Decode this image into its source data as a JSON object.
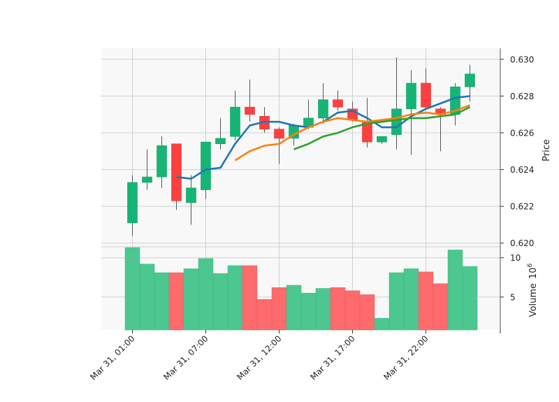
{
  "chart_data": {
    "type": "candlestick",
    "price_axis": {
      "label": "Price",
      "ylim": [
        0.6198,
        0.6306
      ],
      "ticks": [
        "0.620",
        "0.622",
        "0.624",
        "0.626",
        "0.628",
        "0.630"
      ],
      "tick_values": [
        0.62,
        0.622,
        0.624,
        0.626,
        0.628,
        0.63
      ]
    },
    "volume_axis": {
      "label": "Volume",
      "exponent_label": "10",
      "exponent": "6",
      "ylim": [
        0.8,
        11.4
      ],
      "ticks": [
        "5",
        "10"
      ],
      "tick_values": [
        5,
        10
      ]
    },
    "x_axis": {
      "tick_labels": [
        "Mar 31, 01:00",
        "Mar 31, 07:00",
        "Mar 31, 12:00",
        "Mar 31, 17:00",
        "Mar 31, 22:00"
      ],
      "tick_index": [
        0,
        5,
        10,
        15,
        20
      ]
    },
    "grid": true,
    "colors": {
      "up": "#16b575",
      "down": "#fc4040",
      "up_volume": "#4dc790",
      "down_volume": "#fd6b6c",
      "wick": "#555555",
      "background": "#f8f8f8",
      "grid": "#d0d0d0"
    },
    "candles": [
      {
        "o": 0.6211,
        "h": 0.6237,
        "l": 0.6204,
        "c": 0.6233,
        "v": 11.3
      },
      {
        "o": 0.6233,
        "h": 0.6251,
        "l": 0.6229,
        "c": 0.6236,
        "v": 9.2
      },
      {
        "o": 0.6236,
        "h": 0.6258,
        "l": 0.623,
        "c": 0.6253,
        "v": 8.1
      },
      {
        "o": 0.6254,
        "h": 0.6254,
        "l": 0.6218,
        "c": 0.6223,
        "v": 8.1
      },
      {
        "o": 0.6222,
        "h": 0.6237,
        "l": 0.621,
        "c": 0.623,
        "v": 8.6
      },
      {
        "o": 0.6229,
        "h": 0.6255,
        "l": 0.6224,
        "c": 0.6255,
        "v": 9.9
      },
      {
        "o": 0.6254,
        "h": 0.6268,
        "l": 0.6251,
        "c": 0.6257,
        "v": 8.0
      },
      {
        "o": 0.6258,
        "h": 0.6283,
        "l": 0.6256,
        "c": 0.6274,
        "v": 9.0
      },
      {
        "o": 0.6274,
        "h": 0.6289,
        "l": 0.6266,
        "c": 0.627,
        "v": 9.0
      },
      {
        "o": 0.6269,
        "h": 0.6274,
        "l": 0.626,
        "c": 0.6262,
        "v": 4.7
      },
      {
        "o": 0.6262,
        "h": 0.6263,
        "l": 0.6243,
        "c": 0.6257,
        "v": 6.2
      },
      {
        "o": 0.6257,
        "h": 0.6265,
        "l": 0.6253,
        "c": 0.6264,
        "v": 6.5
      },
      {
        "o": 0.6263,
        "h": 0.6278,
        "l": 0.6262,
        "c": 0.6268,
        "v": 5.5
      },
      {
        "o": 0.6268,
        "h": 0.6287,
        "l": 0.6265,
        "c": 0.6278,
        "v": 6.1
      },
      {
        "o": 0.6278,
        "h": 0.6283,
        "l": 0.6272,
        "c": 0.6274,
        "v": 6.2
      },
      {
        "o": 0.6273,
        "h": 0.6277,
        "l": 0.6266,
        "c": 0.6267,
        "v": 5.8
      },
      {
        "o": 0.6266,
        "h": 0.6279,
        "l": 0.6252,
        "c": 0.6255,
        "v": 5.3
      },
      {
        "o": 0.6255,
        "h": 0.6258,
        "l": 0.6254,
        "c": 0.6258,
        "v": 2.3
      },
      {
        "o": 0.6259,
        "h": 0.6301,
        "l": 0.6251,
        "c": 0.6273,
        "v": 8.1
      },
      {
        "o": 0.6273,
        "h": 0.6294,
        "l": 0.6248,
        "c": 0.6287,
        "v": 8.6
      },
      {
        "o": 0.6287,
        "h": 0.6295,
        "l": 0.6273,
        "c": 0.6274,
        "v": 8.2
      },
      {
        "o": 0.6273,
        "h": 0.6274,
        "l": 0.625,
        "c": 0.627,
        "v": 6.7
      },
      {
        "o": 0.627,
        "h": 0.6287,
        "l": 0.6264,
        "c": 0.6285,
        "v": 11.0
      },
      {
        "o": 0.6285,
        "h": 0.6297,
        "l": 0.6277,
        "c": 0.6292,
        "v": 8.9
      }
    ],
    "moving_averages": [
      {
        "color": "#1f77b4",
        "start": 3,
        "values": [
          0.6236,
          0.6235,
          0.624,
          0.6241,
          0.6254,
          0.6264,
          0.6266,
          0.6266,
          0.6264,
          0.6263,
          0.6266,
          0.6271,
          0.6272,
          0.6268,
          0.6263,
          0.6263,
          0.6269,
          0.6273,
          0.6276,
          0.6279,
          0.628
        ]
      },
      {
        "color": "#ff7f0e",
        "start": 7,
        "values": [
          0.6245,
          0.625,
          0.6253,
          0.6254,
          0.6259,
          0.6263,
          0.6266,
          0.6268,
          0.6267,
          0.6266,
          0.6267,
          0.6268,
          0.627,
          0.6271,
          0.627,
          0.6272,
          0.6275
        ]
      },
      {
        "color": "#2ca02c",
        "start": 11,
        "values": [
          0.6251,
          0.6254,
          0.6258,
          0.626,
          0.6263,
          0.6265,
          0.6266,
          0.6267,
          0.6268,
          0.6268,
          0.6269,
          0.627,
          0.6274
        ]
      }
    ]
  }
}
